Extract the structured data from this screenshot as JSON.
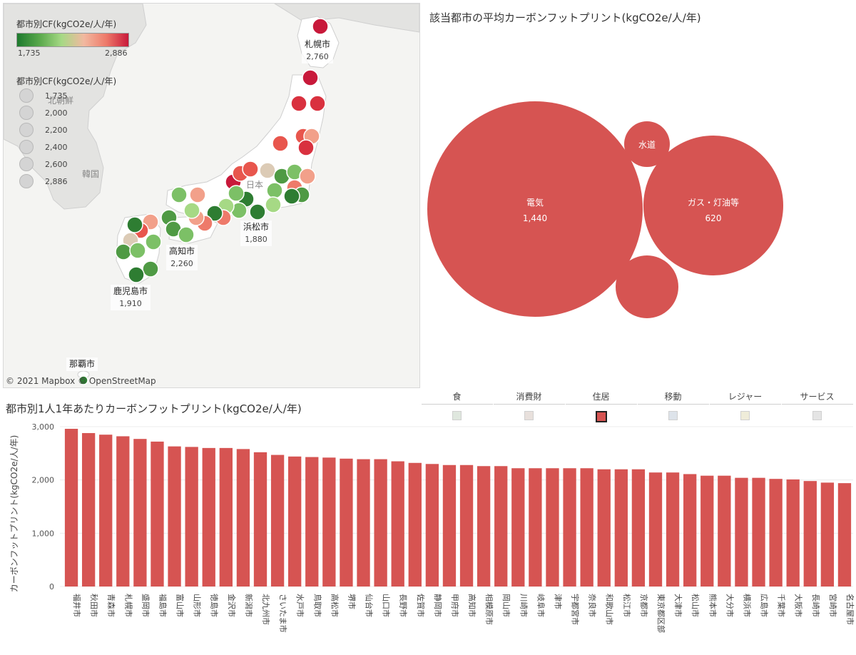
{
  "map": {
    "color_legend": {
      "title": "都市別CF(kgCO2e/人/年)",
      "min": "1,735",
      "max": "2,886"
    },
    "size_legend": {
      "title": "都市別CF(kgCO2e/人/年)",
      "items": [
        "1,735",
        "2,000",
        "2,200",
        "2,400",
        "2,600",
        "2,886"
      ]
    },
    "place_labels": {
      "korea": "韓国",
      "nkorea": "北朝鮮",
      "japan": "日本"
    },
    "city_labels": [
      {
        "name": "札幌市",
        "value": "2,760"
      },
      {
        "name": "浜松市",
        "value": "1,880"
      },
      {
        "name": "高知市",
        "value": "2,260"
      },
      {
        "name": "鹿児島市",
        "value": "1,910"
      },
      {
        "name": "那覇市",
        "value": ""
      }
    ],
    "credit": "© 2021 Mapbox  © OpenStreetMap",
    "colors": {
      "low": "#2e7d32",
      "high": "#c8193a"
    }
  },
  "bubble": {
    "title": "該当都市の平均カーボンフットプリント(kgCO2e/人/年)",
    "color": "#d65452",
    "items": [
      {
        "name": "電気",
        "value": "1,440"
      },
      {
        "name": "ガス・灯油等",
        "value": "620"
      },
      {
        "name": "水道",
        "value": ""
      },
      {
        "name": "",
        "value": ""
      }
    ]
  },
  "categories": {
    "items": [
      {
        "name": "食",
        "color": "#dfe7de",
        "selected": false
      },
      {
        "name": "消費財",
        "color": "#e8e0dc",
        "selected": false
      },
      {
        "name": "住居",
        "color": "#d65452",
        "selected": true
      },
      {
        "name": "移動",
        "color": "#dde3ea",
        "selected": false
      },
      {
        "name": "レジャー",
        "color": "#efecd9",
        "selected": false
      },
      {
        "name": "サービス",
        "color": "#e4e4e4",
        "selected": false
      }
    ]
  },
  "chart_data": {
    "type": "bar",
    "title": "都市別1人1年あたりカーボンフットプリント(kgCO2e/人/年)",
    "xlabel": "",
    "ylabel": "カーボンフットプリント(kgCO2e/人/年)",
    "ylim": [
      0,
      3000
    ],
    "yticks": [
      "0",
      "1,000",
      "2,000",
      "3,000"
    ],
    "color": "#d65452",
    "categories": [
      "福井市",
      "秋田市",
      "青森市",
      "札幌市",
      "盛岡市",
      "福島市",
      "富山市",
      "山形市",
      "徳島市",
      "金沢市",
      "新潟市",
      "北九州市",
      "さいたま市",
      "水戸市",
      "鳥取市",
      "高松市",
      "堺市",
      "仙台市",
      "山口市",
      "長野市",
      "佐賀市",
      "静岡市",
      "甲府市",
      "高知市",
      "相模原市",
      "岡山市",
      "川崎市",
      "岐阜市",
      "津市",
      "宇都宮市",
      "奈良市",
      "和歌山市",
      "松江市",
      "京都市",
      "東京都区部",
      "大津市",
      "松山市",
      "熊本市",
      "大分市",
      "横浜市",
      "広島市",
      "千葉市",
      "大阪市",
      "長崎市",
      "宮崎市",
      "名古屋市"
    ],
    "values": [
      2960,
      2880,
      2850,
      2820,
      2770,
      2720,
      2630,
      2620,
      2600,
      2600,
      2580,
      2520,
      2470,
      2440,
      2430,
      2420,
      2400,
      2390,
      2390,
      2350,
      2320,
      2300,
      2280,
      2280,
      2260,
      2260,
      2220,
      2220,
      2220,
      2220,
      2220,
      2200,
      2200,
      2200,
      2140,
      2140,
      2110,
      2080,
      2080,
      2040,
      2040,
      2020,
      2010,
      1980,
      1950,
      1940
    ]
  }
}
